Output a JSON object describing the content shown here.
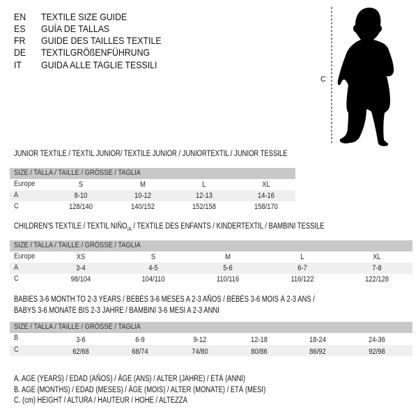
{
  "languages": [
    {
      "code": "EN",
      "title": "TEXTILE SIZE GUIDE"
    },
    {
      "code": "ES",
      "title": "GUÍA DE TALLAS"
    },
    {
      "code": "FR",
      "title": "GUIDE DES TAILLES TEXTILE"
    },
    {
      "code": "DE",
      "title": "TEXTILGRÖßENFÜHRUNG"
    },
    {
      "code": "IT",
      "title": "GUIDA ALLE TAGLIE TESSILI"
    }
  ],
  "figure": {
    "measure_label": "C"
  },
  "junior": {
    "heading": "JUNIOR TEXTILE / TEXTIL JUNIOR/ TEXTILE JUNIOR / JUNIORTEXTIL / JUNIOR TESSILE",
    "header": "SIZE / TALLA / TAILLE / GRÖSSE / TAGLIA",
    "rows": [
      {
        "label": "Europe",
        "values": [
          "S",
          "M",
          "L",
          "XL"
        ]
      },
      {
        "label": "A",
        "values": [
          "8-10",
          "10-12",
          "12-13",
          "14-16"
        ]
      },
      {
        "label": "C",
        "values": [
          "128/140",
          "140/152",
          "152/158",
          "158/170"
        ]
      }
    ]
  },
  "children": {
    "heading_pre": "CHILDREN'S TEXTILE / TEXTIL NIÑO",
    "heading_sub": "/A",
    "heading_post": " / TEXTILE DES ENFANTS / KINDERTEXTIL / BAMBINI TESSILE",
    "header": "SIZE / TALLA / TAILLE / GRÖSSE / TAGLIA",
    "rows": [
      {
        "label": "Europe",
        "values": [
          "XS",
          "S",
          "M",
          "L",
          "XL"
        ]
      },
      {
        "label": "A",
        "values": [
          "3-4",
          "4-5",
          "5-6",
          "6-7",
          "7-8"
        ]
      },
      {
        "label": "C",
        "values": [
          "98/104",
          "104/110",
          "110/116",
          "116/122",
          "122/128"
        ]
      }
    ]
  },
  "babies": {
    "heading_line1": "BABIES 3-6 MONTH TO 2-3 YEARS / BEBÉS 3-6 MESES A 2-3 AÑOS / BÉBÉS 3-6 MOIS À 2-3 ANS /",
    "heading_line2": "BABYS 3-6 MONATE BIS 2-3 JAHRE / BAMBINI 3-6 MESI A 2-3 ANNI",
    "header": "SIZE / TALLA / TAILLE / GRÖSSE / TAGLIA",
    "rows": [
      {
        "label": "B",
        "values": [
          "3-6",
          "6-9",
          "9-12",
          "12-18",
          "18-24",
          "24-36"
        ]
      },
      {
        "label": "C",
        "values": [
          "62/68",
          "68/74",
          "74/80",
          "80/86",
          "86/92",
          "92/98"
        ]
      }
    ]
  },
  "legend": [
    "A. AGE (YEARS) / EDAD (AÑOS) / ÂGE (ANS) / ALTER (JAHRE) / ETÀ (ANNI)",
    "B. AGE (MONTHS) / EDAD (MESES) / ÂGE (MOIS) / ALTER (MONATE) / ETÀ (MESI)",
    "C. (cm) HEIGHT / ALTURA / HAUTEUR / HÖHE / ALTEZZA"
  ],
  "colors": {
    "header_bg": "#c8c8c8",
    "stripe_bg": "#efefef",
    "text": "#111111"
  }
}
